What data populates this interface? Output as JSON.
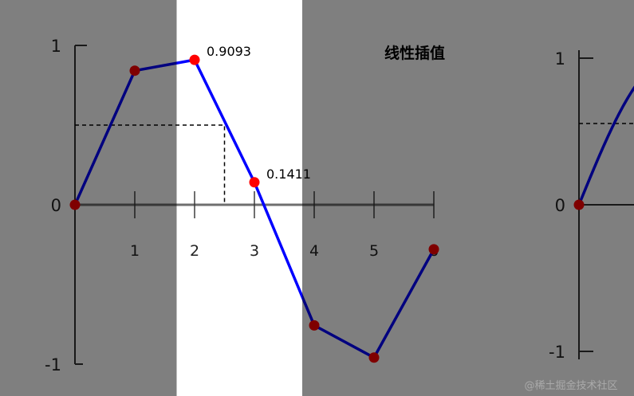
{
  "title": "线性插值",
  "watermark": "@稀土掘金技术社区",
  "colors": {
    "line": "#0000ff",
    "point": "#ff0000",
    "background_dim": "#808080",
    "highlight": "#ffffff"
  },
  "chart_data": [
    {
      "type": "line",
      "title": "线性插值",
      "x": [
        0,
        1,
        2,
        3,
        4,
        5,
        6
      ],
      "y": [
        0,
        0.8415,
        0.9093,
        0.1411,
        -0.7568,
        -0.9589,
        -0.2794
      ],
      "markers": true,
      "x_ticks": [
        "1",
        "2",
        "3",
        "4",
        "5",
        "6"
      ],
      "y_ticks": [
        "-1",
        "0",
        "1"
      ],
      "xlim": [
        0,
        6
      ],
      "ylim": [
        -1,
        1
      ],
      "annotations": [
        {
          "x": 2,
          "y": 0.9093,
          "text": "0.9093"
        },
        {
          "x": 3,
          "y": 0.1411,
          "text": "0.1411"
        }
      ],
      "query": {
        "x": 2.5,
        "y": 0.5
      },
      "highlight_x_range": [
        1.7,
        3.8
      ]
    },
    {
      "type": "line",
      "y_ticks": [
        "-1",
        "0",
        "1"
      ],
      "ylim": [
        -1,
        1
      ],
      "partial": true
    }
  ]
}
